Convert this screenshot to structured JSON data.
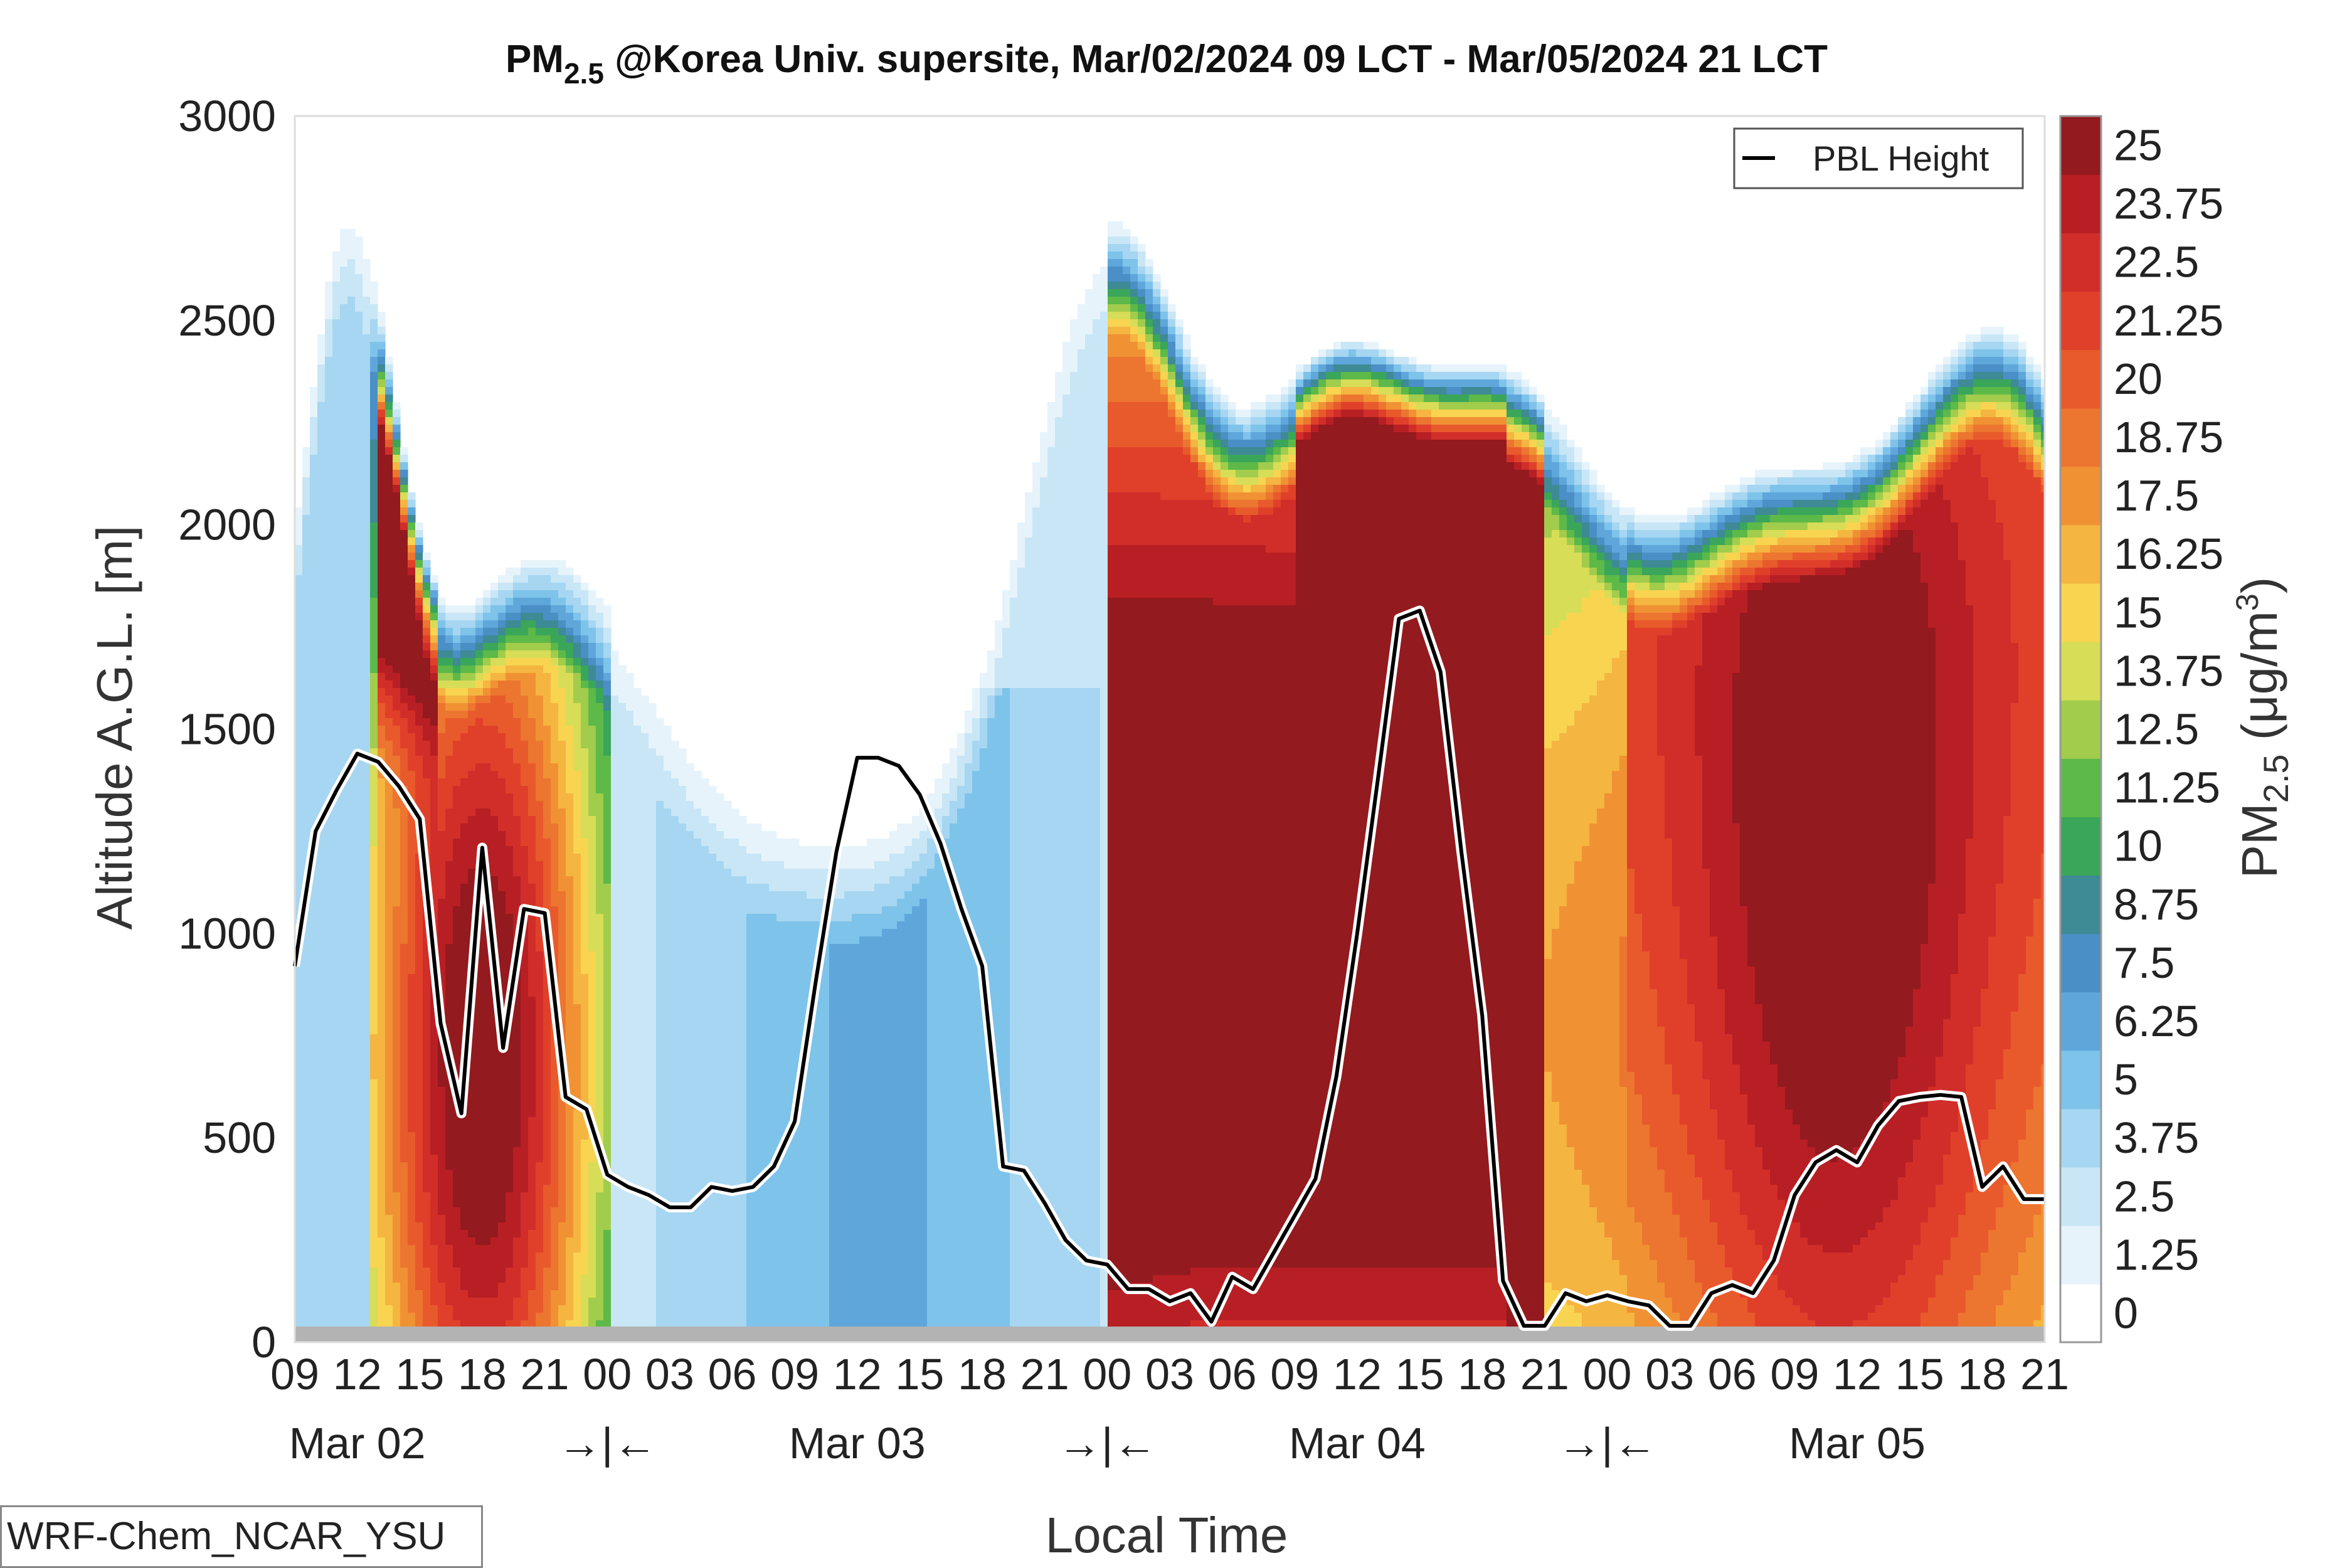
{
  "chart_data": {
    "type": "heatmap",
    "title_prefix": "PM",
    "title_sub": "2.5",
    "title_rest": " @Korea Univ. supersite, Mar/02/2024 09 LCT - Mar/05/2024 21 LCT",
    "ylabel": "Altitude A.G.L. [m]",
    "xlabel": "Local Time",
    "ylim": [
      0,
      3000
    ],
    "y_ticks": [
      0,
      500,
      1000,
      1500,
      2000,
      2500,
      3000
    ],
    "hour_ticks": [
      "09",
      "12",
      "15",
      "18",
      "21",
      "00",
      "03",
      "06",
      "09",
      "12",
      "15",
      "18",
      "21",
      "00",
      "03",
      "06",
      "09",
      "12",
      "15",
      "18",
      "21",
      "00",
      "03",
      "06",
      "09",
      "12",
      "15",
      "18",
      "21"
    ],
    "date_labels": [
      "Mar 02",
      "Mar 03",
      "Mar 04",
      "Mar 05"
    ],
    "day_separator": "→|←",
    "colorbar": {
      "label_prefix": "PM",
      "label_sub": "2.5",
      "label_unit": " (μg/m",
      "label_unit_sup": "3",
      "label_close": ")",
      "levels": [
        "0",
        "1.25",
        "2.5",
        "3.75",
        "5",
        "6.25",
        "7.5",
        "8.75",
        "10",
        "11.25",
        "12.5",
        "13.75",
        "15",
        "16.25",
        "17.5",
        "18.75",
        "20",
        "21.25",
        "22.5",
        "23.75",
        "25"
      ],
      "colors": [
        "#ffffff",
        "#e6f3fb",
        "#c8e6f6",
        "#a6d6f1",
        "#7ec3ea",
        "#5fa7db",
        "#4a8fc6",
        "#3e8a95",
        "#3aa65a",
        "#5db948",
        "#a2cc4c",
        "#d7dd57",
        "#f8d451",
        "#f5b541",
        "#f09233",
        "#ec7530",
        "#e85a2b",
        "#e0402a",
        "#d12e2a",
        "#b81f24",
        "#931a1e"
      ]
    },
    "legend": {
      "label": "PBL Height",
      "placement": "top-right"
    },
    "pbl_height": {
      "hours": [
        0,
        1,
        2,
        3,
        4,
        5,
        6,
        7,
        8,
        9,
        10,
        11,
        12,
        13,
        14,
        15,
        16,
        17,
        18,
        19,
        20,
        21,
        22,
        23,
        24,
        25,
        26,
        27,
        28,
        29,
        30,
        31,
        32,
        33,
        34,
        35,
        36,
        37,
        38,
        39,
        40,
        41,
        42,
        43,
        44,
        45,
        46,
        47,
        48,
        49,
        50,
        51,
        52,
        53,
        54,
        55,
        56,
        57,
        58,
        59,
        60,
        61,
        62,
        63,
        64,
        65,
        66,
        67,
        68,
        69,
        70,
        71,
        72,
        73,
        74,
        75,
        76,
        77,
        78,
        79,
        80,
        81,
        82,
        83,
        84
      ],
      "values": [
        920,
        1250,
        1350,
        1440,
        1420,
        1360,
        1280,
        780,
        560,
        1210,
        720,
        1060,
        1050,
        600,
        570,
        410,
        380,
        360,
        330,
        330,
        380,
        370,
        380,
        430,
        540,
        880,
        1200,
        1430,
        1430,
        1410,
        1340,
        1220,
        1060,
        920,
        430,
        420,
        340,
        250,
        200,
        190,
        130,
        130,
        100,
        120,
        50,
        160,
        130,
        220,
        310,
        400,
        650,
        1000,
        1380,
        1770,
        1790,
        1640,
        1200,
        800,
        150,
        40,
        40,
        120,
        100,
        115,
        100,
        90,
        40,
        40,
        120,
        140,
        120,
        200,
        360,
        440,
        470,
        440,
        530,
        590,
        600,
        605,
        600,
        380,
        430,
        350,
        350
      ]
    },
    "note": "WRF-Chem_NCAR_YSU"
  }
}
